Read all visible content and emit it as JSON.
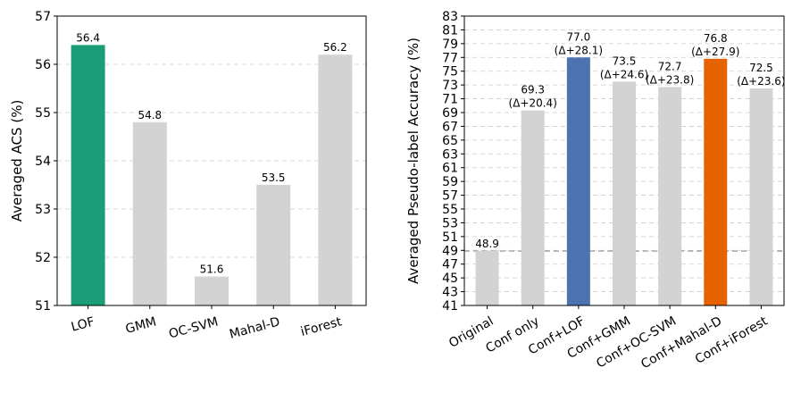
{
  "chart_data": [
    {
      "type": "bar",
      "title": "",
      "xlabel": "",
      "ylabel": "Averaged ACS (%)",
      "categories": [
        "LOF",
        "GMM",
        "OC-SVM",
        "Mahal-D",
        "iForest"
      ],
      "values": [
        56.4,
        54.8,
        51.6,
        53.5,
        56.2
      ],
      "value_labels": [
        "56.4",
        "54.8",
        "51.6",
        "53.5",
        "56.2"
      ],
      "bar_colors": [
        "#1b9e77",
        "#d3d3d3",
        "#d3d3d3",
        "#d3d3d3",
        "#d3d3d3"
      ],
      "ylim": [
        51,
        57
      ],
      "yticks": [
        51,
        52,
        53,
        54,
        55,
        56,
        57
      ],
      "grid": true
    },
    {
      "type": "bar",
      "title": "",
      "xlabel": "",
      "ylabel": "Averaged Pseudo-label Accuracy (%)",
      "categories": [
        "Original",
        "Conf only",
        "Conf+LOF",
        "Conf+GMM",
        "Conf+OC-SVM",
        "Conf+Mahal-D",
        "Conf+iForest"
      ],
      "values": [
        48.9,
        69.3,
        77.0,
        73.5,
        72.7,
        76.8,
        72.5
      ],
      "value_labels": [
        "48.9",
        "69.3",
        "77.0",
        "73.5",
        "72.7",
        "76.8",
        "72.5"
      ],
      "delta_labels": [
        "",
        "(Δ+20.4)",
        "(Δ+28.1)",
        "(Δ+24.6)",
        "(Δ+23.8)",
        "(Δ+27.9)",
        "(Δ+23.6)"
      ],
      "bar_colors": [
        "#d3d3d3",
        "#d3d3d3",
        "#4c72b0",
        "#d3d3d3",
        "#d3d3d3",
        "#e66100",
        "#d3d3d3"
      ],
      "ylim": [
        41,
        83
      ],
      "yticks": [
        41,
        43,
        45,
        47,
        49,
        51,
        53,
        55,
        57,
        59,
        61,
        63,
        65,
        67,
        69,
        71,
        73,
        75,
        77,
        79,
        81,
        83
      ],
      "baseline": 48.9,
      "baseline_color": "#a0a0a0",
      "grid": true
    }
  ]
}
